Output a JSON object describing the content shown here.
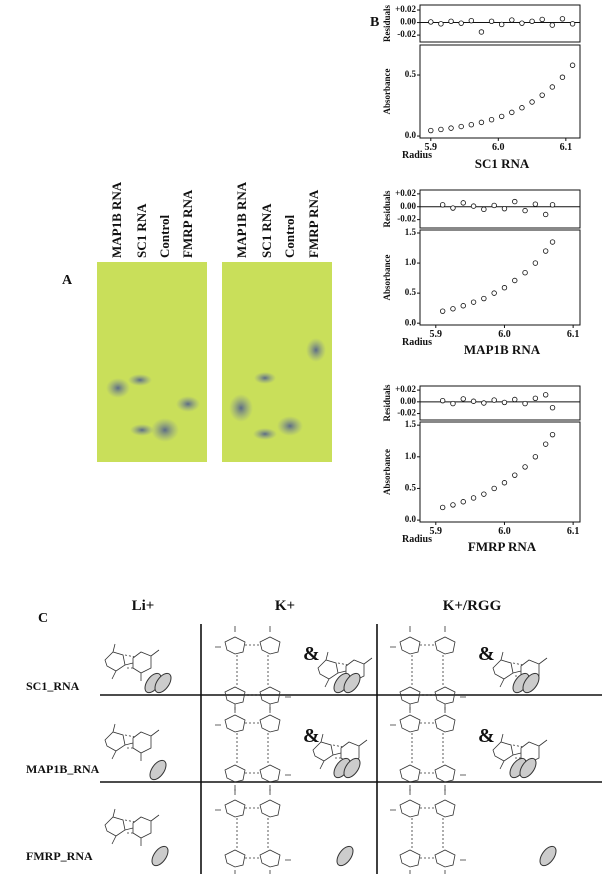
{
  "panel_a": {
    "label": "A",
    "gels": [
      {
        "lanes": [
          "MAP1B RNA",
          "SC1 RNA",
          "Control",
          "FMRP RNA"
        ]
      },
      {
        "lanes": [
          "MAP1B RNA",
          "SC1 RNA",
          "Control",
          "FMRP RNA"
        ]
      }
    ]
  },
  "panel_b": {
    "label": "B",
    "plots": [
      {
        "title": "SC1 RNA",
        "residuals": {
          "type": "scatter",
          "ylabel": "Residuals",
          "ylim": [
            -0.031,
            0.028
          ],
          "yticks": [
            {
              "value": 0.02,
              "label": "+0.02"
            },
            {
              "value": 0,
              "label": "0.00"
            },
            {
              "value": -0.02,
              "label": "-0.02"
            }
          ],
          "x": [
            5.9,
            5.915,
            5.93,
            5.945,
            5.96,
            5.975,
            5.99,
            6.005,
            6.02,
            6.035,
            6.05,
            6.065,
            6.08,
            6.095,
            6.11
          ],
          "values": [
            0.001,
            -0.002,
            0.002,
            -0.001,
            0.003,
            -0.015,
            0.002,
            -0.003,
            0.004,
            -0.001,
            0.002,
            0.005,
            -0.004,
            0.006,
            -0.002
          ]
        },
        "absorbance": {
          "type": "scatter",
          "ylabel": "Absorbance",
          "xlabel": "Radius",
          "xlim": [
            5.884,
            6.121
          ],
          "xticks": [
            5.9,
            {
              "value": 6.0,
              "label": "6.0"
            },
            6.1
          ],
          "ylim": [
            -0.016,
            0.746
          ],
          "yticks": [
            {
              "value": 0,
              "label": "0.0"
            },
            0.5
          ],
          "x": [
            5.9,
            5.915,
            5.93,
            5.945,
            5.96,
            5.975,
            5.99,
            6.005,
            6.02,
            6.035,
            6.05,
            6.065,
            6.08,
            6.095,
            6.11
          ],
          "values": [
            0.045,
            0.054,
            0.065,
            0.078,
            0.093,
            0.112,
            0.134,
            0.161,
            0.194,
            0.232,
            0.279,
            0.335,
            0.402,
            0.482,
            0.58
          ]
        }
      },
      {
        "title": "MAP1B RNA",
        "residuals": {
          "type": "scatter",
          "ylabel": "Residuals",
          "ylim": [
            -0.033,
            0.026
          ],
          "yticks": [
            {
              "value": 0.02,
              "label": "+0.02"
            },
            {
              "value": 0,
              "label": "0.00"
            },
            {
              "value": -0.02,
              "label": "-0.02"
            }
          ],
          "x": [
            5.91,
            5.925,
            5.94,
            5.955,
            5.97,
            5.985,
            6.0,
            6.015,
            6.03,
            6.045,
            6.06,
            6.07
          ],
          "values": [
            0.003,
            -0.002,
            0.006,
            0.001,
            -0.004,
            0.002,
            -0.003,
            0.008,
            -0.006,
            0.004,
            -0.012,
            0.003
          ]
        },
        "absorbance": {
          "type": "scatter",
          "ylabel": "Absorbance",
          "xlabel": "Radius",
          "xlim": [
            5.877,
            6.11
          ],
          "xticks": [
            5.9,
            {
              "value": 6.0,
              "label": "6.0"
            },
            6.1
          ],
          "ylim": [
            -0.03,
            1.55
          ],
          "yticks": [
            {
              "value": 0,
              "label": "0.0"
            },
            0.5,
            {
              "value": 1,
              "label": "1.0"
            },
            1.5
          ],
          "x": [
            5.91,
            5.925,
            5.94,
            5.955,
            5.97,
            5.985,
            6.0,
            6.015,
            6.03,
            6.045,
            6.06,
            6.07
          ],
          "values": [
            0.2,
            0.24,
            0.29,
            0.35,
            0.41,
            0.5,
            0.59,
            0.71,
            0.84,
            1.0,
            1.2,
            1.35
          ]
        }
      },
      {
        "title": "FMRP RNA",
        "residuals": {
          "type": "scatter",
          "ylabel": "Residuals",
          "ylim": [
            -0.031,
            0.027
          ],
          "yticks": [
            {
              "value": 0.02,
              "label": "+0.02"
            },
            {
              "value": 0,
              "label": "0.00"
            },
            {
              "value": -0.02,
              "label": "-0.02"
            }
          ],
          "x": [
            5.91,
            5.925,
            5.94,
            5.955,
            5.97,
            5.985,
            6.0,
            6.015,
            6.03,
            6.045,
            6.06,
            6.07
          ],
          "values": [
            0.002,
            -0.003,
            0.005,
            0.001,
            -0.002,
            0.003,
            -0.001,
            0.004,
            -0.003,
            0.006,
            0.012,
            -0.01
          ]
        },
        "absorbance": {
          "type": "scatter",
          "ylabel": "Absorbance",
          "xlabel": "Radius",
          "xlim": [
            5.877,
            6.11
          ],
          "xticks": [
            5.9,
            {
              "value": 6.0,
              "label": "6.0"
            },
            6.1
          ],
          "ylim": [
            -0.03,
            1.55
          ],
          "yticks": [
            {
              "value": 0,
              "label": "0.0"
            },
            0.5,
            {
              "value": 1,
              "label": "1.0"
            },
            1.5
          ],
          "x": [
            5.91,
            5.925,
            5.94,
            5.955,
            5.97,
            5.985,
            6.0,
            6.015,
            6.03,
            6.045,
            6.06,
            6.07
          ],
          "values": [
            0.2,
            0.24,
            0.29,
            0.35,
            0.41,
            0.5,
            0.59,
            0.71,
            0.84,
            1.0,
            1.2,
            1.35
          ]
        }
      }
    ]
  },
  "panel_c": {
    "label": "C",
    "columns": [
      "Li+",
      "K+",
      "K+/RGG"
    ],
    "rows": [
      "SC1_RNA",
      "MAP1B_RNA",
      "FMRP_RNA"
    ],
    "joiner": "&"
  }
}
